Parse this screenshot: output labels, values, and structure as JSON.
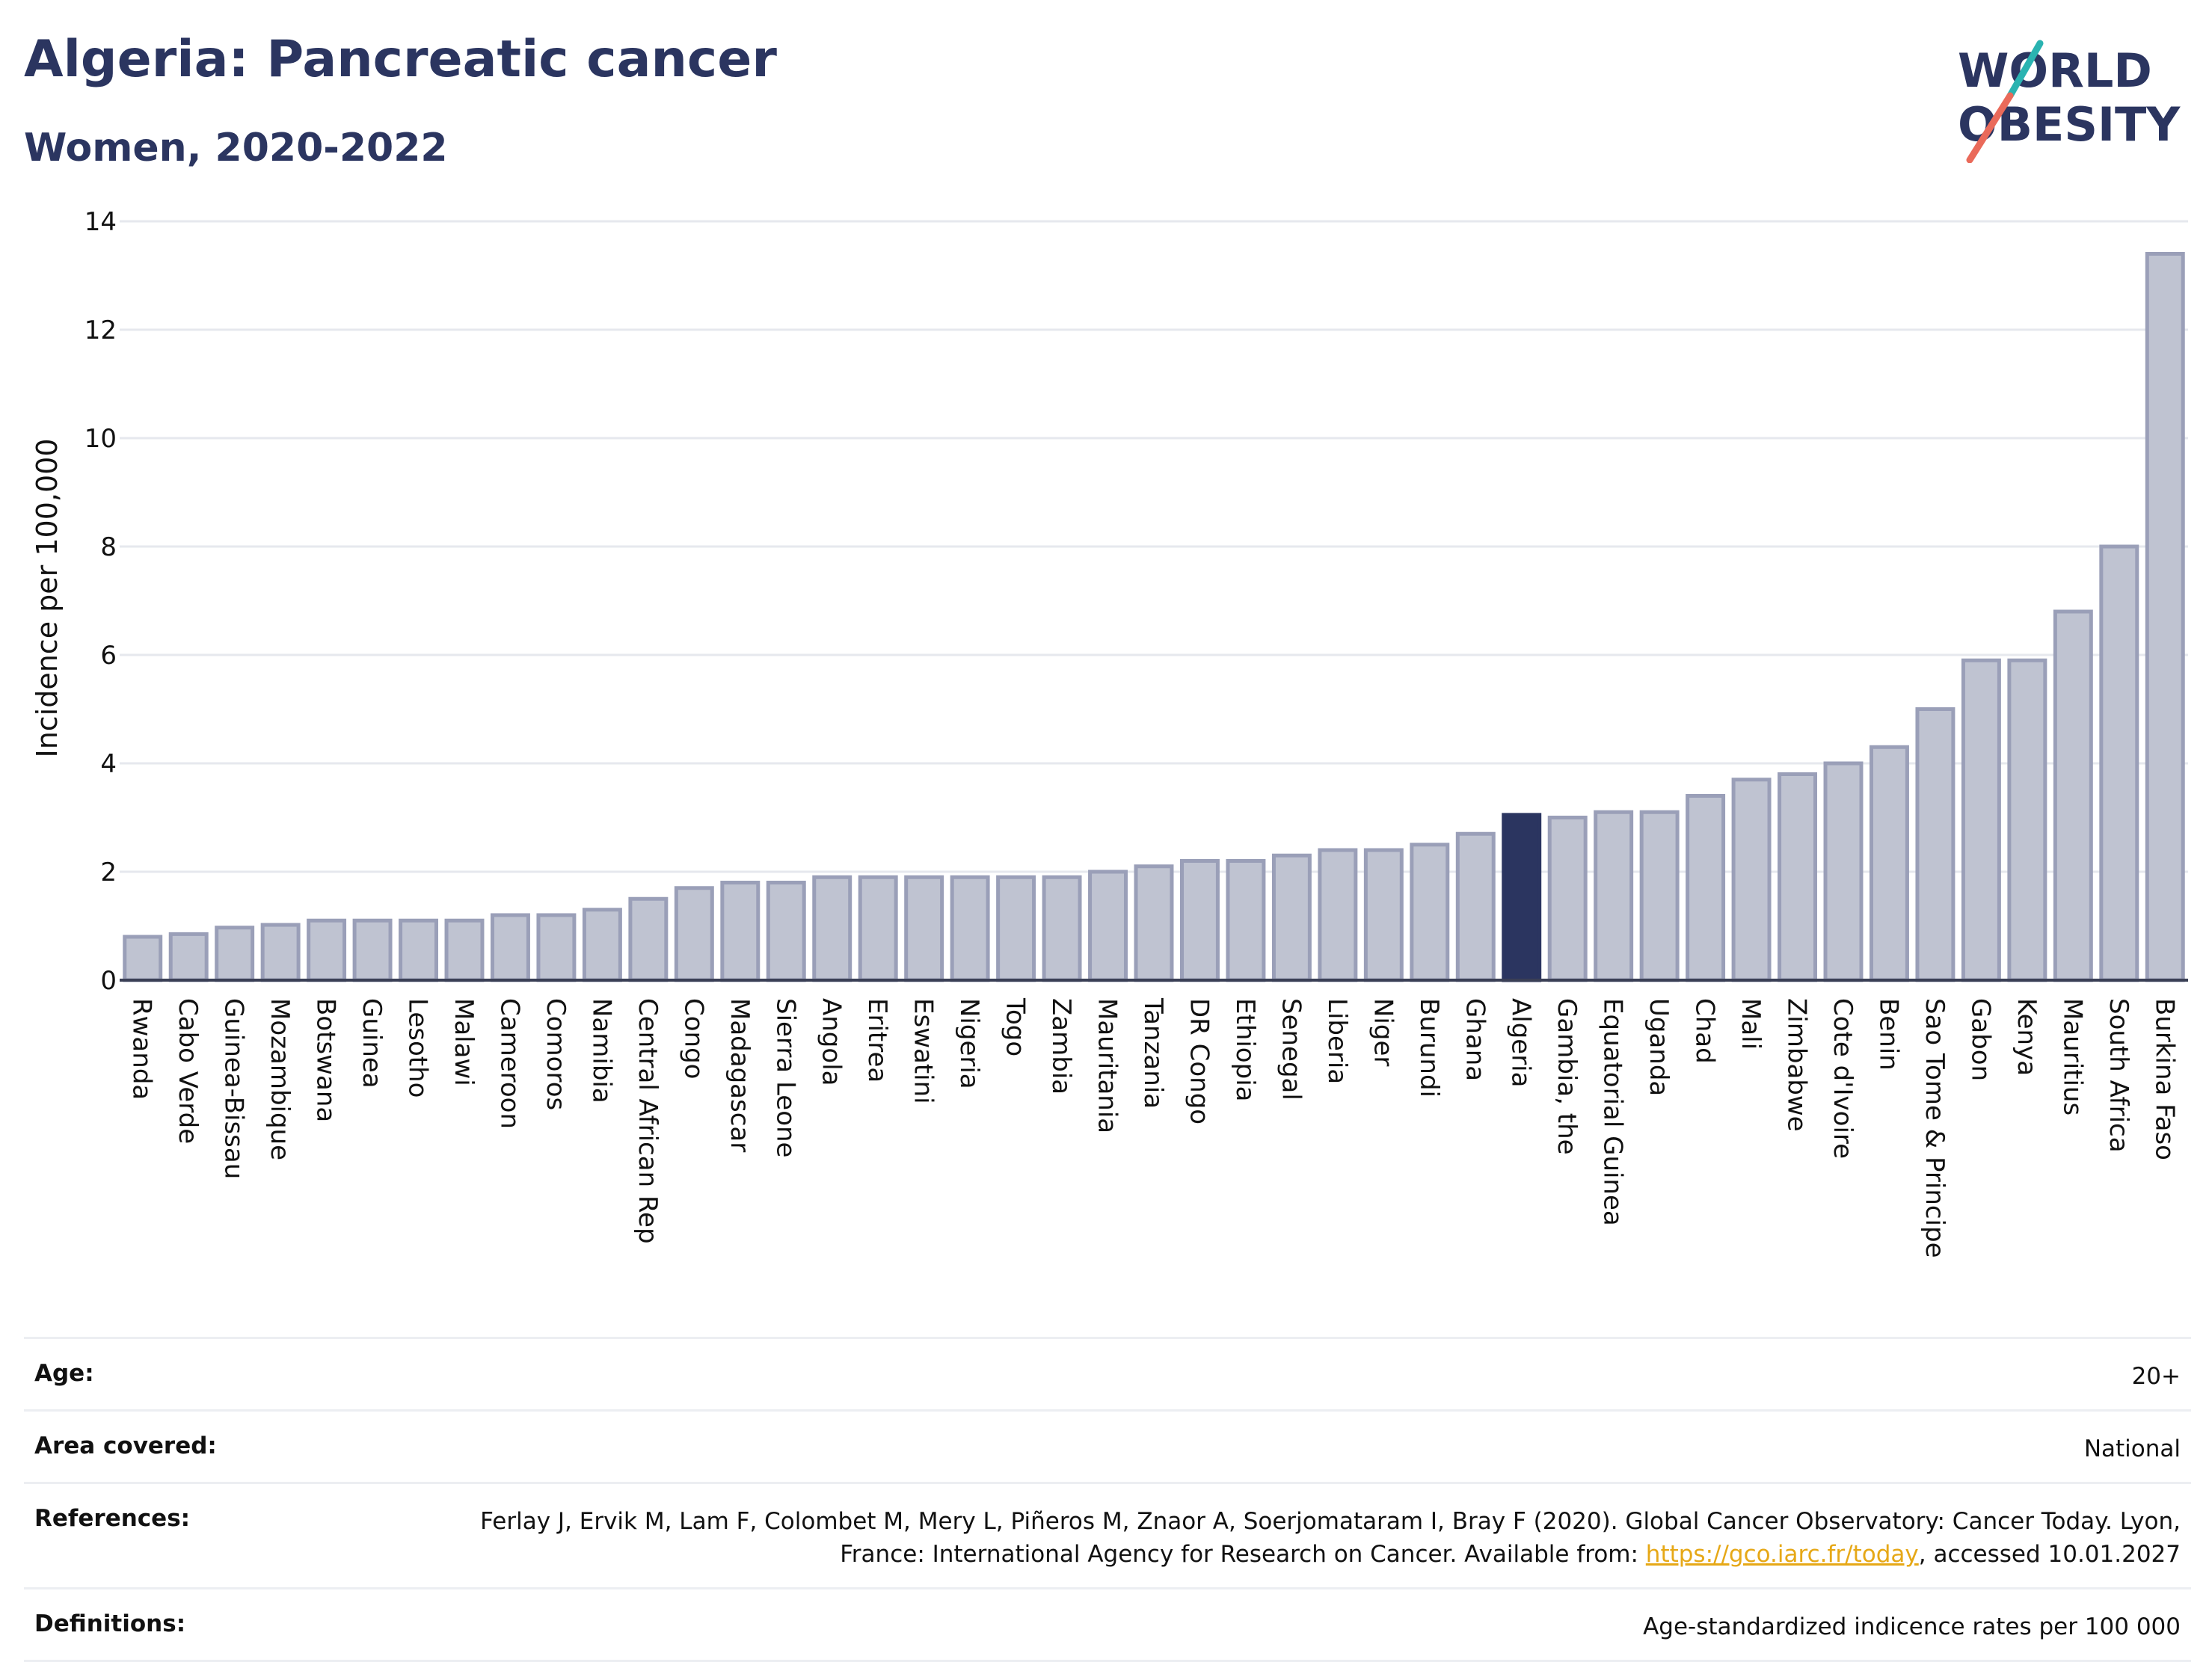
{
  "header": {
    "title": "Algeria: Pancreatic cancer",
    "subtitle": "Women, 2020-2022"
  },
  "logo": {
    "line1": "WORLD",
    "line2": "OBESITY",
    "icon": "world-obesity-logo"
  },
  "colors": {
    "highlight": "#2b3560",
    "bar_fill": "#bfc3d1",
    "bar_stroke": "#9a9fb8",
    "grid": "#e6e8ee",
    "logo_text": "#2b3560",
    "logo_teal": "#2ab3b1",
    "logo_coral": "#ea6a5a",
    "link": "#e6a817"
  },
  "chart_data": {
    "type": "bar",
    "ylabel": "Incidence per 100,000",
    "ylim": [
      0,
      14
    ],
    "yticks": [
      0,
      2,
      4,
      6,
      8,
      10,
      12,
      14
    ],
    "grid": true,
    "highlight": "Algeria",
    "categories": [
      "Rwanda",
      "Cabo Verde",
      "Guinea-Bissau",
      "Mozambique",
      "Botswana",
      "Guinea",
      "Lesotho",
      "Malawi",
      "Cameroon",
      "Comoros",
      "Namibia",
      "Central African Rep",
      "Congo",
      "Madagascar",
      "Sierra Leone",
      "Angola",
      "Eritrea",
      "Eswatini",
      "Nigeria",
      "Togo",
      "Zambia",
      "Mauritania",
      "Tanzania",
      "DR Congo",
      "Ethiopia",
      "Senegal",
      "Liberia",
      "Niger",
      "Burundi",
      "Ghana",
      "Algeria",
      "Gambia, the",
      "Equatorial Guinea",
      "Uganda",
      "Chad",
      "Mali",
      "Zimbabwe",
      "Cote d'Ivoire",
      "Benin",
      "Sao Tome & Principe",
      "Gabon",
      "Kenya",
      "Mauritius",
      "South Africa",
      "Burkina Faso"
    ],
    "values": [
      0.8,
      0.85,
      0.97,
      1.02,
      1.1,
      1.1,
      1.1,
      1.1,
      1.2,
      1.2,
      1.3,
      1.5,
      1.7,
      1.8,
      1.8,
      1.9,
      1.9,
      1.9,
      1.9,
      1.9,
      1.9,
      2.0,
      2.1,
      2.2,
      2.2,
      2.3,
      2.4,
      2.4,
      2.5,
      2.7,
      3.05,
      3.0,
      3.1,
      3.1,
      3.4,
      3.7,
      3.8,
      4.0,
      4.3,
      5.0,
      5.9,
      5.9,
      6.8,
      8.0,
      13.4
    ]
  },
  "info": [
    {
      "key": "Age:",
      "value": "20+"
    },
    {
      "key": "Area covered:",
      "value": "National"
    },
    {
      "key": "References:",
      "value_before": "Ferlay J, Ervik M, Lam F, Colombet M, Mery L, Piñeros M, Znaor A, Soerjomataram I, Bray F (2020). Global Cancer Observatory: Cancer Today. Lyon, France: International Agency for Research on Cancer. Available from: ",
      "link": "https://gco.iarc.fr/today",
      "value_after": ", accessed 10.01.2027"
    },
    {
      "key": "Definitions:",
      "value": "Age-standardized indicence rates per 100 000"
    }
  ]
}
